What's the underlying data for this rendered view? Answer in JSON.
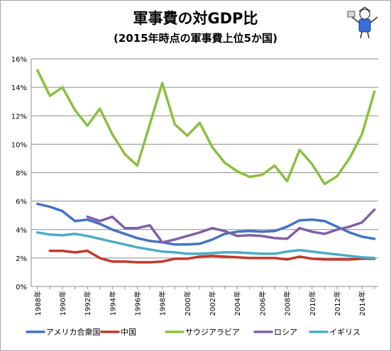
{
  "chart_data": {
    "type": "line",
    "title": "軍事費の対GDP比",
    "subtitle": "(2015年時点の軍事費上位5か国)",
    "xlabel": "",
    "ylabel": "",
    "x": [
      1988,
      1989,
      1990,
      1991,
      1992,
      1993,
      1994,
      1995,
      1996,
      1997,
      1998,
      1999,
      2000,
      2001,
      2002,
      2003,
      2004,
      2005,
      2006,
      2007,
      2008,
      2009,
      2010,
      2011,
      2012,
      2013,
      2014,
      2015
    ],
    "x_tick_labels": [
      "1988年",
      "1990年",
      "1992年",
      "1994年",
      "1996年",
      "1998年",
      "2000年",
      "2002年",
      "2004年",
      "2006年",
      "2008年",
      "2010年",
      "2012年",
      "2014年"
    ],
    "ylim": [
      0,
      16
    ],
    "y_tick_labels": [
      "0%",
      "2%",
      "4%",
      "6%",
      "8%",
      "10%",
      "12%",
      "14%",
      "16%"
    ],
    "grid": "horizontal",
    "legend_position": "bottom",
    "series": [
      {
        "name": "アメリカ合衆国",
        "color": "#4472c4",
        "values": [
          5.8,
          5.6,
          5.3,
          4.6,
          4.7,
          4.4,
          4.0,
          3.7,
          3.4,
          3.2,
          3.1,
          2.95,
          2.95,
          3.0,
          3.3,
          3.7,
          3.85,
          3.9,
          3.85,
          3.9,
          4.2,
          4.65,
          4.7,
          4.6,
          4.2,
          3.8,
          3.5,
          3.35
        ]
      },
      {
        "name": "中国",
        "color": "#c0392b",
        "values": [
          null,
          2.5,
          2.5,
          2.4,
          2.5,
          2.0,
          1.75,
          1.75,
          1.7,
          1.7,
          1.75,
          1.95,
          1.95,
          2.1,
          2.15,
          2.1,
          2.05,
          2.0,
          2.0,
          2.0,
          1.9,
          2.1,
          1.95,
          1.9,
          1.9,
          1.9,
          1.95,
          1.95
        ]
      },
      {
        "name": "サウジアラビア",
        "color": "#8cbf3f",
        "values": [
          15.2,
          13.4,
          14.0,
          12.4,
          11.3,
          12.5,
          10.7,
          9.3,
          8.5,
          11.4,
          14.3,
          11.4,
          10.6,
          11.5,
          9.8,
          8.7,
          8.1,
          7.7,
          7.85,
          8.5,
          7.4,
          9.6,
          8.6,
          7.2,
          7.75,
          9.0,
          10.7,
          13.7
        ]
      },
      {
        "name": "ロシア",
        "color": "#7f60a8",
        "values": [
          null,
          null,
          null,
          null,
          4.9,
          4.6,
          4.9,
          4.1,
          4.1,
          4.3,
          3.1,
          3.3,
          3.55,
          3.8,
          4.1,
          3.9,
          3.55,
          3.6,
          3.55,
          3.4,
          3.35,
          4.1,
          3.85,
          3.7,
          4.0,
          4.2,
          4.5,
          5.4
        ]
      },
      {
        "name": "イギリス",
        "color": "#4bacc6",
        "values": [
          3.8,
          3.65,
          3.6,
          3.7,
          3.55,
          3.35,
          3.15,
          2.95,
          2.75,
          2.6,
          2.45,
          2.4,
          2.3,
          2.3,
          2.35,
          2.4,
          2.4,
          2.35,
          2.3,
          2.3,
          2.45,
          2.55,
          2.45,
          2.35,
          2.25,
          2.15,
          2.05,
          2.0
        ]
      }
    ]
  }
}
